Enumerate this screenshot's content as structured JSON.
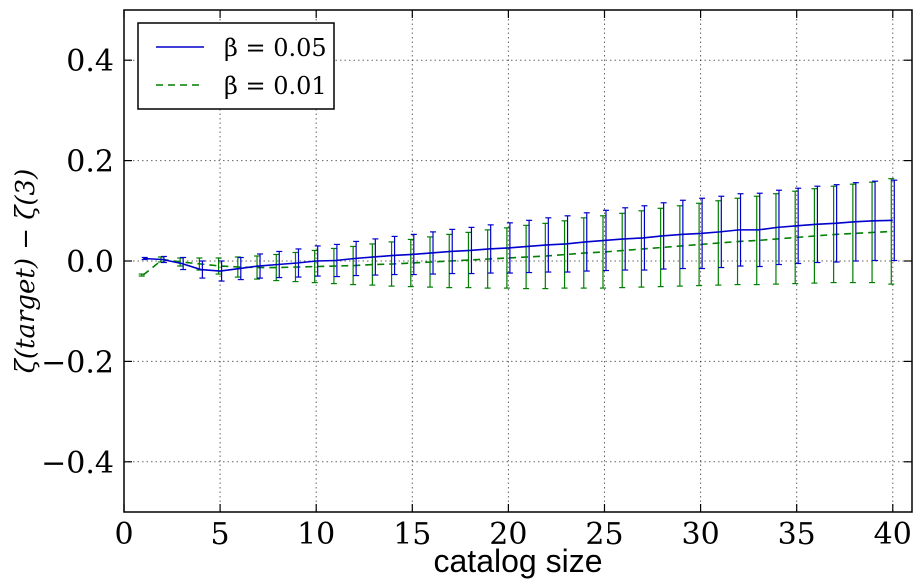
{
  "chart_data": {
    "type": "line",
    "title": "",
    "xlabel": "catalog size",
    "ylabel": "ζ(target) − ζ(3)",
    "xlim": [
      0,
      41
    ],
    "ylim": [
      -0.5,
      0.5
    ],
    "xticks": [
      0,
      5,
      10,
      15,
      20,
      25,
      30,
      35,
      40
    ],
    "xtick_labels": [
      "0",
      "5",
      "10",
      "15",
      "20",
      "25",
      "30",
      "35",
      "40"
    ],
    "yticks": [
      0.4,
      0.2,
      0.0,
      -0.2,
      -0.4
    ],
    "ytick_labels": [
      "0.4",
      "0.2",
      "0.0",
      "−0.2",
      "−0.4"
    ],
    "grid": true,
    "legend_position": "top-left",
    "series": [
      {
        "name": "β = 0.05",
        "style": "solid",
        "color": "#0000cc",
        "x": [
          1,
          2,
          3,
          4,
          5,
          6,
          7,
          8,
          9,
          10,
          11,
          12,
          13,
          14,
          15,
          16,
          17,
          18,
          19,
          20,
          21,
          22,
          23,
          24,
          25,
          26,
          27,
          28,
          29,
          30,
          31,
          32,
          33,
          34,
          35,
          36,
          37,
          38,
          39,
          40
        ],
        "y": [
          0.005,
          0.003,
          -0.005,
          -0.017,
          -0.02,
          -0.015,
          -0.01,
          -0.007,
          -0.004,
          0.0,
          0.001,
          0.005,
          0.008,
          0.011,
          0.013,
          0.016,
          0.019,
          0.021,
          0.024,
          0.026,
          0.029,
          0.032,
          0.034,
          0.038,
          0.041,
          0.044,
          0.046,
          0.05,
          0.053,
          0.055,
          0.058,
          0.062,
          0.062,
          0.067,
          0.07,
          0.073,
          0.075,
          0.078,
          0.08,
          0.081
        ],
        "err": [
          0.002,
          0.006,
          0.012,
          0.017,
          0.02,
          0.022,
          0.024,
          0.026,
          0.028,
          0.03,
          0.032,
          0.034,
          0.036,
          0.038,
          0.04,
          0.042,
          0.044,
          0.046,
          0.048,
          0.05,
          0.052,
          0.054,
          0.056,
          0.058,
          0.06,
          0.062,
          0.064,
          0.066,
          0.068,
          0.07,
          0.071,
          0.072,
          0.073,
          0.074,
          0.075,
          0.076,
          0.077,
          0.078,
          0.079,
          0.08
        ]
      },
      {
        "name": "β = 0.01",
        "style": "dashed",
        "color": "#007f00",
        "x": [
          1,
          2,
          3,
          4,
          5,
          6,
          7,
          8,
          9,
          10,
          11,
          12,
          13,
          14,
          15,
          16,
          17,
          18,
          19,
          20,
          21,
          22,
          23,
          24,
          25,
          26,
          27,
          28,
          29,
          30,
          31,
          32,
          33,
          34,
          35,
          36,
          37,
          38,
          39,
          40
        ],
        "y": [
          -0.028,
          0.003,
          -0.002,
          -0.006,
          -0.01,
          -0.012,
          -0.013,
          -0.013,
          -0.012,
          -0.011,
          -0.01,
          -0.009,
          -0.007,
          -0.006,
          -0.004,
          -0.002,
          0.0,
          0.002,
          0.004,
          0.006,
          0.008,
          0.01,
          0.013,
          0.016,
          0.018,
          0.021,
          0.024,
          0.027,
          0.03,
          0.033,
          0.036,
          0.039,
          0.041,
          0.044,
          0.047,
          0.05,
          0.053,
          0.055,
          0.057,
          0.059
        ],
        "err": [
          0.002,
          0.005,
          0.008,
          0.012,
          0.016,
          0.02,
          0.023,
          0.026,
          0.029,
          0.032,
          0.035,
          0.038,
          0.041,
          0.044,
          0.047,
          0.05,
          0.053,
          0.055,
          0.058,
          0.06,
          0.063,
          0.065,
          0.067,
          0.07,
          0.072,
          0.074,
          0.076,
          0.078,
          0.08,
          0.082,
          0.084,
          0.086,
          0.088,
          0.09,
          0.092,
          0.094,
          0.096,
          0.098,
          0.1,
          0.105
        ]
      }
    ]
  }
}
